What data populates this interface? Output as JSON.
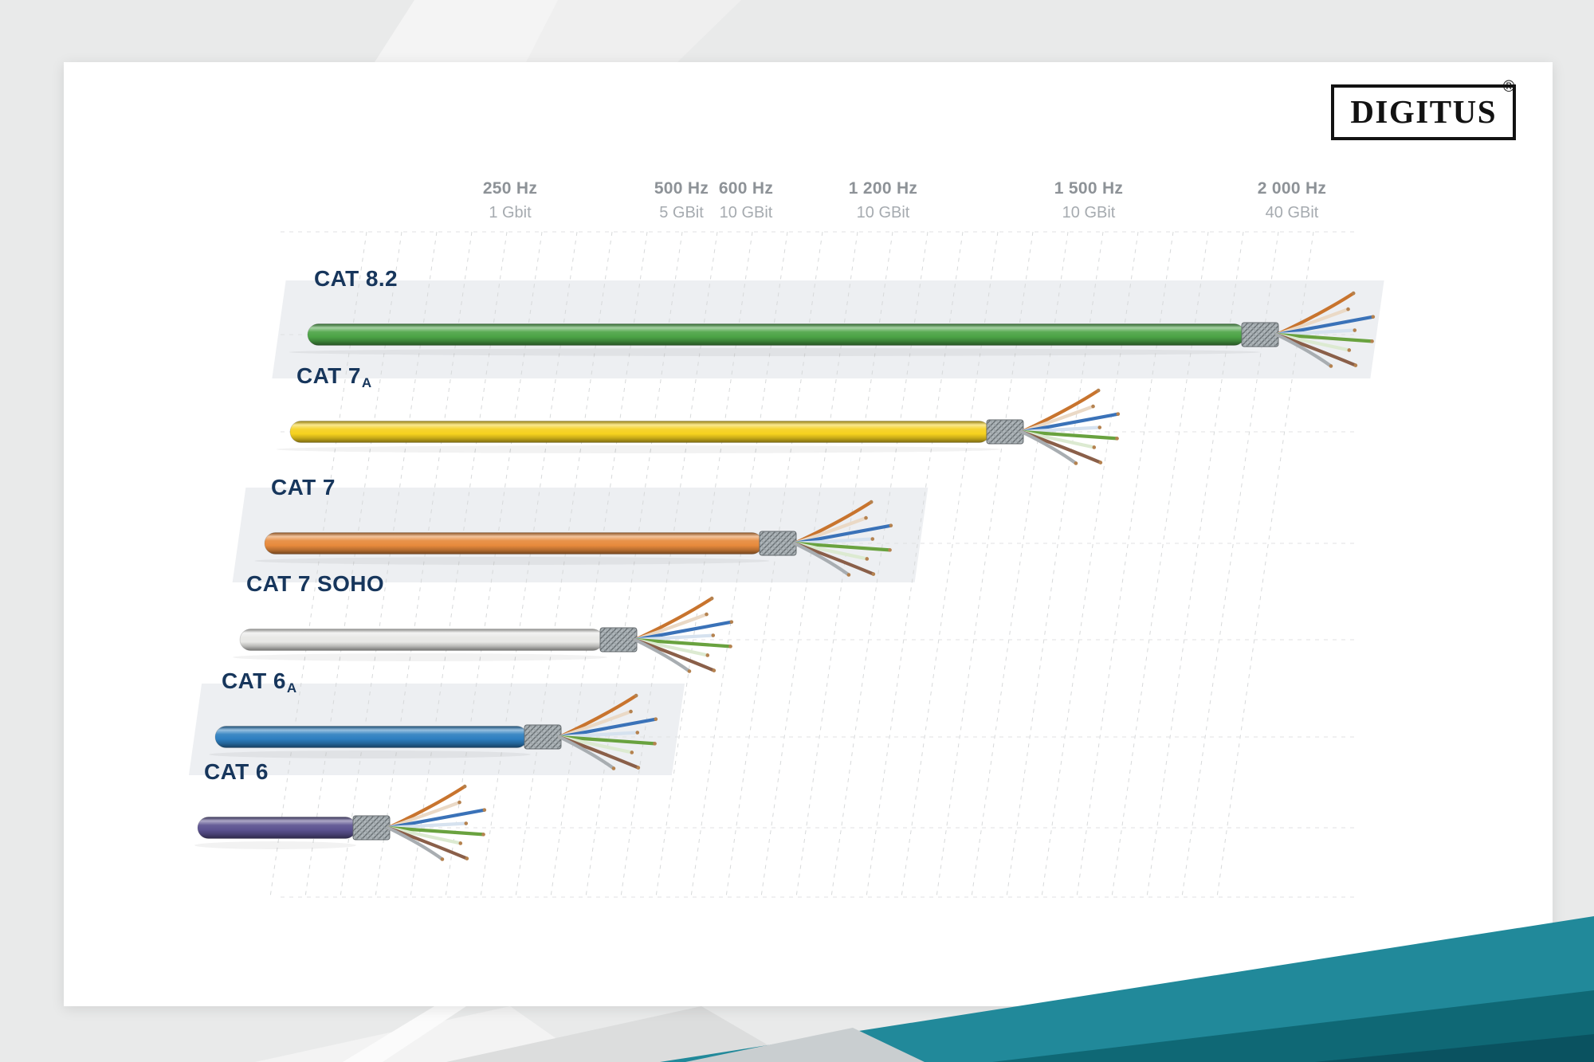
{
  "brand": {
    "logo_text": "DIGITUS",
    "registered_mark": "®"
  },
  "chart_data": {
    "type": "bar",
    "orientation": "horizontal",
    "description": "Network cable categories compared by maximum frequency and bandwidth; each cable illustration extends to its rated tick on the axis.",
    "x_axis": {
      "ticks": [
        {
          "frequency": "250 Hz",
          "bandwidth": "1 Gbit"
        },
        {
          "frequency": "500 Hz",
          "bandwidth": "5 GBit"
        },
        {
          "frequency": "600 Hz",
          "bandwidth": "10 GBit"
        },
        {
          "frequency": "1 200 Hz",
          "bandwidth": "10 GBit"
        },
        {
          "frequency": "1 500 Hz",
          "bandwidth": "10 GBit"
        },
        {
          "frequency": "2 000 Hz",
          "bandwidth": "40 GBit"
        }
      ]
    },
    "cables": [
      {
        "name": "CAT 8.2",
        "sub": "",
        "color": "#4ca446",
        "max_frequency": "2 000 Hz",
        "max_bandwidth": "40 GBit"
      },
      {
        "name": "CAT 7",
        "sub": "A",
        "color": "#f6d11e",
        "max_frequency": "1 500 Hz",
        "max_bandwidth": "10 GBit"
      },
      {
        "name": "CAT 7",
        "sub": "",
        "color": "#e78a3c",
        "max_frequency": "1 200 Hz",
        "max_bandwidth": "10 GBit"
      },
      {
        "name": "CAT 7 SOHO",
        "sub": "",
        "color": "#e8e8e5",
        "max_frequency": "600 Hz",
        "max_bandwidth": "10 GBit"
      },
      {
        "name": "CAT 6",
        "sub": "A",
        "color": "#2e7fc0",
        "max_frequency": "500 Hz",
        "max_bandwidth": "5 GBit"
      },
      {
        "name": "CAT 6",
        "sub": "",
        "color": "#5b5290",
        "max_frequency": "250 Hz",
        "max_bandwidth": "1 Gbit"
      }
    ]
  },
  "colors": {
    "label_text": "#17365c",
    "axis_text": "#8d9297",
    "accent_teal": "#21899a",
    "accent_teal_dark": "#0f6875",
    "accent_teal_darkest": "#0a5260"
  }
}
